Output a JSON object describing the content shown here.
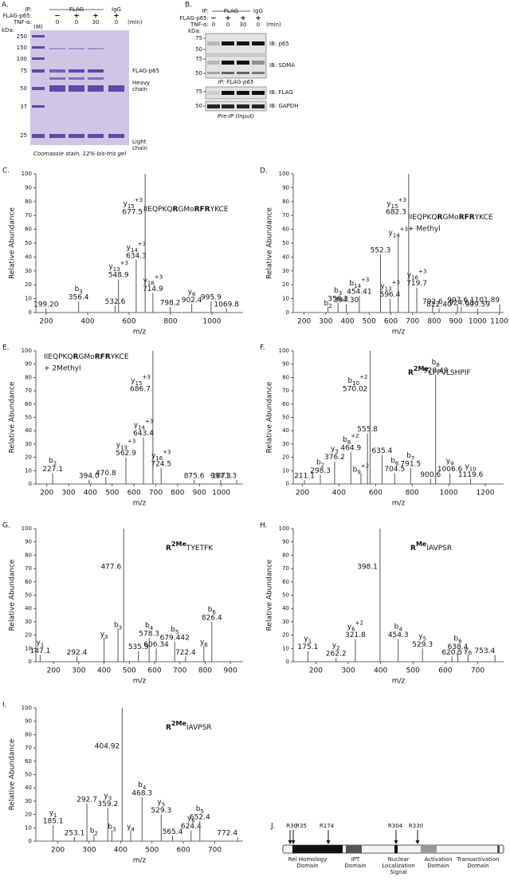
{
  "panel_a": {
    "letter": "A.",
    "ip_label": "IP:",
    "ip_flag": "FLAG",
    "ip_igg": "IgG",
    "row1_label": "FLAG-p65:",
    "row1": [
      "−",
      "+",
      "+",
      "+"
    ],
    "row2_label": "TNF-α:",
    "row2": [
      "0",
      "0",
      "30",
      "0"
    ],
    "unit": "(min)",
    "marker_lane": "(M)",
    "kda": "kDa:",
    "markers": [
      "250",
      "150",
      "100",
      "75",
      "50",
      "37",
      "25"
    ],
    "band_flag": "FLAG-p65",
    "band_heavy": [
      "Heavy",
      "chain"
    ],
    "band_light": [
      "Light",
      "chain"
    ],
    "caption": "Coomassie stain, 12% bis-tris gel"
  },
  "panel_b": {
    "letter": "B.",
    "ip_label": "IP:",
    "ip_flag": "FLAG",
    "ip_igg": "IgG",
    "row1_label": "FLAG-p65:",
    "row1": [
      "−",
      "+",
      "+",
      "+"
    ],
    "row2_label": "TNF-α:",
    "row2": [
      "0",
      "0",
      "30",
      "0"
    ],
    "unit": "(min)",
    "kda": "kDa:",
    "blots": [
      {
        "label": "IB: p65",
        "markers": [
          "75",
          "50"
        ]
      },
      {
        "label": "IB: SDMA",
        "markers": [
          "75",
          "50"
        ]
      },
      {
        "label": "IB: FLAG",
        "markers": [
          "75"
        ]
      },
      {
        "label": "IB: GAPDH",
        "markers": [
          "50"
        ]
      }
    ],
    "caption_ip": "IP: FLAG-p65",
    "caption_input": "Pre-IP (Input)"
  },
  "spectra": [
    {
      "letter": "C.",
      "y_label": "Relative Abundance",
      "x_label": "m/z",
      "sequence": [
        {
          "text": "IIEQPKQ"
        },
        {
          "text": "R",
          "bold": true
        },
        {
          "text": "GMo"
        },
        {
          "text": "RFR",
          "bold": true
        },
        {
          "text": "YKCE"
        }
      ],
      "xlim": [
        150,
        1150
      ],
      "xticks": [
        200,
        400,
        600,
        800,
        1000
      ],
      "ylim": [
        0,
        100
      ],
      "yticks": [
        0,
        10,
        20,
        30,
        40,
        50,
        60,
        70,
        80,
        90,
        100
      ],
      "peaks": [
        {
          "mz": 199.2,
          "mz_label": "199.20",
          "abundance": 3
        },
        {
          "mz": 356.4,
          "mz_label": "356.4",
          "abundance": 8,
          "ion": "b",
          "sub": "3"
        },
        {
          "mz": 532.6,
          "mz_label": "532.6",
          "abundance": 5
        },
        {
          "mz": 548.9,
          "mz_label": "548.9",
          "abundance": 24,
          "ion": "y",
          "sub": "13",
          "sup": "+3"
        },
        {
          "mz": 634.3,
          "mz_label": "634.3",
          "abundance": 38,
          "ion": "y",
          "sub": "14",
          "sup": "+3"
        },
        {
          "mz": 677.5,
          "mz_label": "677.5",
          "abundance": 100,
          "ion": "y",
          "sub": "15",
          "sup": "+3"
        },
        {
          "mz": 714.9,
          "mz_label": "714.9",
          "abundance": 14,
          "ion": "y",
          "sub": "16",
          "sup": "+3"
        },
        {
          "mz": 798.2,
          "mz_label": "798.2",
          "abundance": 4
        },
        {
          "mz": 902.4,
          "mz_label": "902.4",
          "abundance": 6,
          "ion": "y",
          "sub": "6"
        },
        {
          "mz": 995.9,
          "mz_label": "995.9",
          "abundance": 8
        },
        {
          "mz": 1069.8,
          "mz_label": "1069.8",
          "abundance": 3
        }
      ]
    },
    {
      "letter": "D.",
      "y_label": "Relative Abundance",
      "x_label": "m/z",
      "sequence": [
        {
          "text": "IIEQPKQ"
        },
        {
          "text": "R",
          "bold": true
        },
        {
          "text": "GMo"
        },
        {
          "text": "RFR",
          "bold": true
        },
        {
          "text": "YKCE"
        }
      ],
      "modification": "+ Methyl",
      "xlim": [
        150,
        1120
      ],
      "xticks": [
        200,
        300,
        400,
        500,
        600,
        700,
        800,
        900,
        1000,
        1100
      ],
      "ylim": [
        0,
        100
      ],
      "yticks": [
        0,
        10,
        20,
        30,
        40,
        50,
        60,
        70,
        80,
        90,
        100
      ],
      "peaks": [
        {
          "mz": 310,
          "abundance": 4,
          "ion": "b",
          "sub": "2"
        },
        {
          "mz": 356.3,
          "mz_label": "356.3",
          "abundance": 7,
          "ion": "b",
          "sub": "3"
        },
        {
          "mz": 394.3,
          "mz_label": "394.30",
          "abundance": 6
        },
        {
          "mz": 454.41,
          "mz_label": "454.41",
          "abundance": 12,
          "ion": "b",
          "sub": "14",
          "sup": "+3"
        },
        {
          "mz": 552.3,
          "mz_label": "552.3",
          "abundance": 42
        },
        {
          "mz": 596.4,
          "mz_label": "596.4",
          "abundance": 10,
          "ion": "y",
          "sub": "13",
          "sup": "+3"
        },
        {
          "mz": 634,
          "abundance": 55,
          "ion": "y",
          "sub": "14",
          "sup": "+3"
        },
        {
          "mz": 682.3,
          "mz_label": "682.3",
          "abundance": 100,
          "ion": "y",
          "sub": "15",
          "sup": "+3"
        },
        {
          "mz": 719.7,
          "mz_label": "719.7",
          "abundance": 18,
          "ion": "y",
          "sub": "16",
          "sup": "+3"
        },
        {
          "mz": 792.6,
          "mz_label": "792.6",
          "abundance": 5
        },
        {
          "mz": 822.4,
          "mz_label": "822.40",
          "abundance": 3
        },
        {
          "mz": 907.6,
          "mz_label": "907.6",
          "abundance": 6
        },
        {
          "mz": 924.63,
          "mz_label": "924.63",
          "abundance": 4
        },
        {
          "mz": 999.59,
          "mz_label": "999.59",
          "abundance": 3
        },
        {
          "mz": 1101.89,
          "mz_label": "1101.89",
          "abundance": 6
        }
      ]
    },
    {
      "letter": "E.",
      "y_label": "Relative Abundance",
      "x_label": "m/z",
      "sequence": [
        {
          "text": "IIEQPKQ"
        },
        {
          "text": "R",
          "bold": true
        },
        {
          "text": "GMo"
        },
        {
          "text": "RFR",
          "bold": true
        },
        {
          "text": "YKCE"
        }
      ],
      "modification": "+ 2Methyl",
      "xlim": [
        150,
        1100
      ],
      "xticks": [
        200,
        300,
        400,
        500,
        600,
        700,
        800,
        900,
        1000
      ],
      "ylim": [
        0,
        100
      ],
      "yticks": [
        0,
        10,
        20,
        30,
        40,
        50,
        60,
        70,
        80,
        90,
        100
      ],
      "peaks": [
        {
          "mz": 227.1,
          "mz_label": "227.1",
          "abundance": 8,
          "ion": "b",
          "sub": "2"
        },
        {
          "mz": 394,
          "mz_label": "394.0",
          "abundance": 3
        },
        {
          "mz": 470.8,
          "mz_label": "470.8",
          "abundance": 5
        },
        {
          "mz": 562.9,
          "mz_label": "562.9",
          "abundance": 20,
          "ion": "y",
          "sub": "13",
          "sup": "+3"
        },
        {
          "mz": 643.4,
          "mz_label": "643.4",
          "abundance": 35,
          "ion": "y",
          "sub": "14",
          "sup": "+3"
        },
        {
          "mz": 686.7,
          "mz_label": "686.7",
          "abundance": 100,
          "ion": "y",
          "sub": "15",
          "sup": "+3"
        },
        {
          "mz": 724.5,
          "mz_label": "724.5",
          "abundance": 12,
          "ion": "y",
          "sub": "16",
          "sup": "+3"
        },
        {
          "mz": 875.6,
          "mz_label": "875.6",
          "abundance": 3
        },
        {
          "mz": 997.3,
          "mz_label": "997.3",
          "abundance": 3
        },
        {
          "mz": 1071.3,
          "mz_label": "1071.3",
          "abundance": 3
        }
      ]
    },
    {
      "letter": "F.",
      "y_label": "Relative Abundance",
      "x_label": "m/z",
      "sequence": [
        {
          "text": "R",
          "bold": true
        },
        {
          "text": "2Me",
          "bold": true,
          "sup": true
        },
        {
          "text": "LPPVLSHPIF"
        }
      ],
      "xlim": [
        150,
        1300
      ],
      "xticks": [
        200,
        400,
        600,
        800,
        1000,
        1200
      ],
      "ylim": [
        0,
        100
      ],
      "yticks": [
        0,
        10,
        20,
        30,
        40,
        50,
        60,
        70,
        80,
        90,
        100
      ],
      "peaks": [
        {
          "mz": 211.1,
          "mz_label": "211.1",
          "abundance": 3
        },
        {
          "mz": 298.3,
          "mz_label": "298.3",
          "abundance": 7,
          "ion": "b",
          "sub": "2"
        },
        {
          "mz": 376.2,
          "mz_label": "376.2",
          "abundance": 17,
          "ion": "y",
          "sub": "3"
        },
        {
          "mz": 464.9,
          "mz_label": "464.9",
          "abundance": 24,
          "ion": "b",
          "sub": "8",
          "sup": "+2"
        },
        {
          "mz": 520,
          "abundance": 8,
          "ion": "b",
          "sub": "9",
          "sup": "+2"
        },
        {
          "mz": 555.8,
          "mz_label": "555.8",
          "abundance": 38
        },
        {
          "mz": 570.02,
          "mz_label": "570.02",
          "abundance": 100,
          "ion": "b",
          "sub": "10",
          "sup": "+2"
        },
        {
          "mz": 635.4,
          "mz_label": "635.4",
          "abundance": 22
        },
        {
          "mz": 704.5,
          "mz_label": "704.5",
          "abundance": 8,
          "ion": "b",
          "sub": "6"
        },
        {
          "mz": 791.5,
          "mz_label": "791.5",
          "abundance": 12,
          "ion": "b",
          "sub": "7"
        },
        {
          "mz": 900.6,
          "mz_label": "900.6",
          "abundance": 4
        },
        {
          "mz": 928.49,
          "mz_label": "928.49",
          "abundance": 82,
          "ion": "b",
          "sub": "8"
        },
        {
          "mz": 1006.6,
          "mz_label": "1006.6",
          "abundance": 8,
          "ion": "y",
          "sub": "9"
        },
        {
          "mz": 1119.6,
          "mz_label": "1119.6",
          "abundance": 4,
          "ion": "y",
          "sub": "10"
        }
      ]
    },
    {
      "letter": "G.",
      "y_label": "Relative Abundance",
      "x_label": "m/z",
      "sequence": [
        {
          "text": "R",
          "bold": true
        },
        {
          "text": "2Me",
          "bold": true,
          "sup": true
        },
        {
          "text": "TYETFK"
        }
      ],
      "xlim": [
        130,
        950
      ],
      "xticks": [
        200,
        300,
        400,
        500,
        600,
        700,
        800,
        900
      ],
      "ylim": [
        0,
        100
      ],
      "yticks": [
        0,
        10,
        20,
        30,
        40,
        50,
        60,
        70,
        80,
        90,
        100
      ],
      "peaks": [
        {
          "mz": 147.1,
          "mz_label": "147.1",
          "abundance": 5,
          "ion": "y",
          "sub": "1"
        },
        {
          "mz": 292.4,
          "mz_label": "292.4",
          "abundance": 4
        },
        {
          "mz": 400,
          "abundance": 18,
          "ion": "y",
          "sub": "3"
        },
        {
          "mz": 455,
          "abundance": 25,
          "ion": "b",
          "sub": "3"
        },
        {
          "mz": 477.6,
          "mz_label": "477.6",
          "abundance": 100
        },
        {
          "mz": 535.9,
          "mz_label": "535.9",
          "abundance": 8
        },
        {
          "mz": 578.3,
          "mz_label": "578.3",
          "abundance": 18,
          "ion": "b",
          "sub": "4"
        },
        {
          "mz": 606.34,
          "mz_label": "606.34",
          "abundance": 10
        },
        {
          "mz": 679.442,
          "mz_label": "679.442",
          "abundance": 15,
          "ion": "b",
          "sub": "5"
        },
        {
          "mz": 722.4,
          "mz_label": "722.4",
          "abundance": 4
        },
        {
          "mz": 795,
          "abundance": 12,
          "ion": "y",
          "sub": "6"
        },
        {
          "mz": 826.4,
          "mz_label": "826.4",
          "abundance": 30,
          "ion": "b",
          "sub": "6"
        }
      ]
    },
    {
      "letter": "H.",
      "y_label": "Relative Abundance",
      "x_label": "m/z",
      "sequence": [
        {
          "text": "R",
          "bold": true
        },
        {
          "text": "Me",
          "bold": true,
          "sup": true
        },
        {
          "text": "IAVPSR"
        }
      ],
      "xlim": [
        130,
        780
      ],
      "xticks": [
        200,
        300,
        400,
        500,
        600,
        700
      ],
      "ylim": [
        0,
        100
      ],
      "yticks": [
        0,
        10,
        20,
        30,
        40,
        50,
        60,
        70,
        80,
        90,
        100
      ],
      "peaks": [
        {
          "mz": 175.1,
          "mz_label": "175.1",
          "abundance": 8,
          "ion": "y",
          "sub": "1"
        },
        {
          "mz": 262.2,
          "mz_label": "262.2",
          "abundance": 3,
          "ion": "y",
          "sub": "2"
        },
        {
          "mz": 321.8,
          "mz_label": "321.8",
          "abundance": 17,
          "ion": "y",
          "sub": "6",
          "sup": "+2"
        },
        {
          "mz": 398.1,
          "mz_label": "398.1",
          "abundance": 100
        },
        {
          "mz": 454.3,
          "mz_label": "454.3",
          "abundance": 17,
          "ion": "b",
          "sub": "4"
        },
        {
          "mz": 529.3,
          "mz_label": "529.3",
          "abundance": 10,
          "ion": "y",
          "sub": "5"
        },
        {
          "mz": 620.5,
          "mz_label": "620.5",
          "abundance": 4
        },
        {
          "mz": 638.4,
          "mz_label": "638.4",
          "abundance": 8,
          "ion": "b",
          "sub": "6"
        },
        {
          "mz": 670,
          "abundance": 6,
          "ion": "y",
          "sub": "6"
        },
        {
          "mz": 753.4,
          "mz_label": "753.4",
          "abundance": 5
        }
      ]
    },
    {
      "letter": "I.",
      "y_label": "Relative Abundance",
      "x_label": "m/z",
      "sequence": [
        {
          "text": "R",
          "bold": true
        },
        {
          "text": "2Me",
          "bold": true,
          "sup": true
        },
        {
          "text": "IAVPSR"
        }
      ],
      "xlim": [
        130,
        790
      ],
      "xticks": [
        200,
        300,
        400,
        500,
        600,
        700
      ],
      "ylim": [
        0,
        100
      ],
      "yticks": [
        0,
        10,
        20,
        30,
        40,
        50,
        60,
        70,
        80,
        90,
        100
      ],
      "peaks": [
        {
          "mz": 185.1,
          "mz_label": "185.1",
          "abundance": 12,
          "ion": "y",
          "sub": "1"
        },
        {
          "mz": 253.1,
          "mz_label": "253.1",
          "abundance": 3
        },
        {
          "mz": 292.7,
          "mz_label": "292.7",
          "abundance": 28
        },
        {
          "mz": 315,
          "abundance": 5,
          "ion": "b",
          "sub": "2"
        },
        {
          "mz": 359.2,
          "mz_label": "359.2",
          "abundance": 25,
          "ion": "y",
          "sub": "3"
        },
        {
          "mz": 372,
          "abundance": 8,
          "ion": "b",
          "sub": "3"
        },
        {
          "mz": 404.92,
          "mz_label": "404.92",
          "abundance": 100
        },
        {
          "mz": 432,
          "abundance": 8,
          "ion": "y",
          "sub": "4"
        },
        {
          "mz": 468.3,
          "mz_label": "468.3",
          "abundance": 33,
          "ion": "b",
          "sub": "4"
        },
        {
          "mz": 529.3,
          "mz_label": "529.3",
          "abundance": 20,
          "ion": "y",
          "sub": "5"
        },
        {
          "mz": 565.4,
          "mz_label": "565.4",
          "abundance": 4
        },
        {
          "mz": 624.4,
          "mz_label": "624.4",
          "abundance": 8,
          "ion": "y",
          "sub": "6"
        },
        {
          "mz": 652.4,
          "mz_label": "652.4",
          "abundance": 15,
          "ion": "b",
          "sub": "5"
        },
        {
          "mz": 772.4,
          "mz_label": "772.4",
          "abundance": 3
        }
      ]
    }
  ],
  "panel_j": {
    "letter": "J.",
    "sites": [
      "R30",
      "R35",
      "R174",
      "R304",
      "R330"
    ],
    "domains": [
      [
        "Rel Homology",
        "Domain"
      ],
      [
        "IPT",
        "Domain"
      ],
      [
        "Nuclear",
        "Localization",
        "Signal"
      ],
      [
        "Activation",
        "Domain"
      ],
      [
        "Transactivation",
        "Domain"
      ]
    ]
  }
}
